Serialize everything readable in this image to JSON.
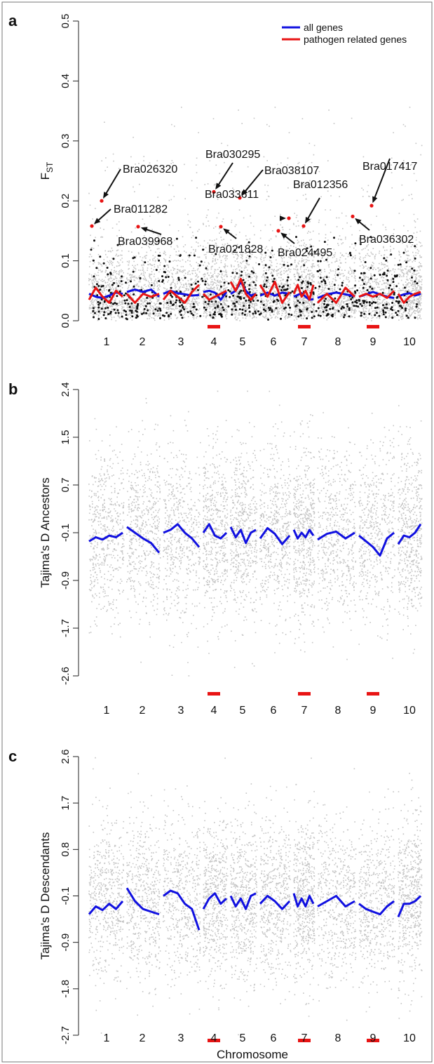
{
  "chart_data": [
    {
      "panel": "a",
      "type": "scatter",
      "ylabel": "F",
      "ylabel_sub": "ST",
      "ylim": [
        0,
        0.5
      ],
      "yticks": [
        "0.0",
        "0.1",
        "0.2",
        "0.3",
        "0.4",
        "0.5"
      ],
      "chromosomes": [
        "1",
        "2",
        "3",
        "4",
        "5",
        "6",
        "7",
        "8",
        "9",
        "10"
      ],
      "highlighted_chromosomes": [
        "4",
        "7",
        "9"
      ],
      "legend": {
        "position": "top-right",
        "entries": [
          {
            "label": "all genes",
            "color": "#1010e0"
          },
          {
            "label": "pathogen related genes",
            "color": "#e81414"
          }
        ]
      },
      "series": [
        {
          "name": "all genes",
          "color": "#1010e0",
          "values": [
            0.045,
            0.04,
            0.038,
            0.042,
            0.047,
            0.045,
            0.048,
            0.052,
            0.048,
            0.052,
            0.04,
            0.045,
            0.05,
            0.046,
            0.044,
            0.042,
            0.043,
            0.048,
            0.05,
            0.047,
            0.035,
            0.048,
            0.045,
            0.05,
            0.065,
            0.05,
            0.042,
            0.045,
            0.042,
            0.047,
            0.042,
            0.047,
            0.045,
            0.04,
            0.043,
            0.046,
            0.04,
            0.035,
            0.036,
            0.038,
            0.044,
            0.047,
            0.044,
            0.041,
            0.04,
            0.044,
            0.048,
            0.044,
            0.04,
            0.038,
            0.041,
            0.044,
            0.046,
            0.042,
            0.045
          ]
        },
        {
          "name": "pathogen related genes",
          "color": "#e81414",
          "values": [
            0.035,
            0.055,
            0.04,
            0.03,
            0.05,
            0.04,
            0.045,
            0.03,
            0.045,
            0.04,
            0.045,
            0.035,
            0.05,
            0.04,
            0.03,
            0.048,
            0.06,
            0.045,
            0.035,
            0.04,
            0.045,
            0.05,
            0.065,
            0.05,
            0.07,
            0.045,
            0.035,
            0.045,
            0.06,
            0.04,
            0.065,
            0.03,
            0.048,
            0.045,
            0.06,
            0.04,
            0.05,
            0.035,
            0.06,
            0.03,
            0.045,
            0.03,
            0.055,
            0.04,
            0.04,
            0.045,
            0.04,
            0.045,
            0.038,
            0.05,
            0.045,
            0.03,
            0.04,
            0.045,
            0.048
          ]
        }
      ],
      "outliers": [
        {
          "gene": "Bra026320",
          "chromosome": "1",
          "fst": 0.2
        },
        {
          "gene": "Bra011282",
          "chromosome": "1",
          "fst": 0.158
        },
        {
          "gene": "Bra039968",
          "chromosome": "2",
          "fst": 0.157
        },
        {
          "gene": "Bra030295",
          "chromosome": "4",
          "fst": 0.215
        },
        {
          "gene": "Bra021828",
          "chromosome": "4",
          "fst": 0.157
        },
        {
          "gene": "Bra038107",
          "chromosome": "5",
          "fst": 0.205
        },
        {
          "gene": "Bra033611",
          "chromosome": "6",
          "fst": 0.171
        },
        {
          "gene": "Bra024495",
          "chromosome": "6",
          "fst": 0.15
        },
        {
          "gene": "Bra012356",
          "chromosome": "7",
          "fst": 0.158
        },
        {
          "gene": "Bra017417",
          "chromosome": "9",
          "fst": 0.192
        },
        {
          "gene": "Bra036302",
          "chromosome": "9",
          "fst": 0.174
        }
      ]
    },
    {
      "panel": "b",
      "type": "scatter",
      "ylabel": "Tajima's D Ancestors",
      "ylim": [
        -2.6,
        2.4
      ],
      "yticks": [
        "-2.6",
        "-1.7",
        "-0.9",
        "-0.1",
        "0.7",
        "1.5",
        "2.4"
      ],
      "chromosomes": [
        "1",
        "2",
        "3",
        "4",
        "5",
        "6",
        "7",
        "8",
        "9",
        "10"
      ],
      "highlighted_chromosomes": [
        "4",
        "7",
        "9"
      ],
      "series": [
        {
          "name": "all genes",
          "color": "#1010e0",
          "values": [
            -0.25,
            -0.18,
            -0.22,
            -0.15,
            -0.18,
            -0.1,
            0.0,
            -0.1,
            -0.2,
            -0.28,
            -0.45,
            -0.1,
            -0.05,
            0.05,
            -0.1,
            -0.2,
            -0.35,
            -0.1,
            0.05,
            -0.15,
            -0.2,
            -0.1,
            0.0,
            -0.18,
            -0.05,
            -0.28,
            -0.1,
            -0.05,
            -0.2,
            -0.02,
            -0.12,
            -0.3,
            -0.15,
            -0.05,
            -0.2,
            -0.1,
            -0.18,
            -0.05,
            -0.15,
            -0.22,
            -0.12,
            -0.08,
            -0.2,
            -0.1,
            -0.15,
            -0.25,
            -0.35,
            -0.5,
            -0.2,
            -0.1,
            -0.3,
            -0.15,
            -0.18,
            -0.1,
            0.05
          ]
        }
      ]
    },
    {
      "panel": "c",
      "type": "scatter",
      "ylabel": "Tajima's D Descendants",
      "xlabel": "Chromosome",
      "ylim": [
        -2.7,
        2.6
      ],
      "yticks": [
        "-2.7",
        "-1.8",
        "-0.9",
        "-0.1",
        "0.8",
        "1.7",
        "2.6"
      ],
      "chromosomes": [
        "1",
        "2",
        "3",
        "4",
        "5",
        "6",
        "7",
        "8",
        "9",
        "10"
      ],
      "highlighted_chromosomes": [
        "4",
        "7",
        "9"
      ],
      "series": [
        {
          "name": "all genes",
          "color": "#1010e0",
          "values": [
            -0.4,
            -0.25,
            -0.32,
            -0.2,
            -0.3,
            -0.15,
            0.1,
            -0.15,
            -0.3,
            -0.35,
            -0.4,
            -0.05,
            0.05,
            0.0,
            -0.2,
            -0.3,
            -0.7,
            -0.3,
            -0.1,
            0.0,
            -0.2,
            -0.1,
            -0.05,
            -0.25,
            -0.1,
            -0.3,
            -0.05,
            0.0,
            -0.2,
            -0.05,
            -0.15,
            -0.3,
            -0.15,
            0.0,
            -0.25,
            -0.1,
            -0.25,
            -0.05,
            -0.2,
            -0.25,
            -0.15,
            -0.05,
            -0.25,
            -0.15,
            -0.2,
            -0.3,
            -0.35,
            -0.4,
            -0.25,
            -0.15,
            -0.45,
            -0.2,
            -0.2,
            -0.15,
            -0.05
          ]
        }
      ]
    }
  ]
}
